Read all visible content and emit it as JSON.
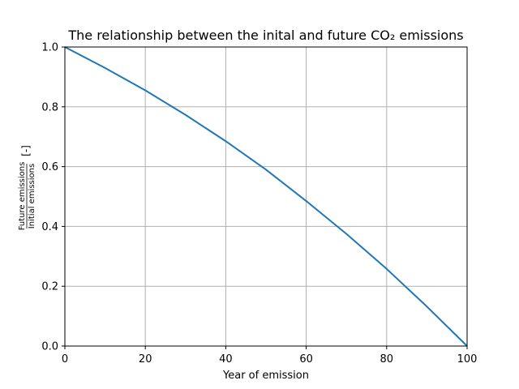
{
  "chart_data": {
    "type": "line",
    "title": "The relationship between the inital and future CO₂ emissions",
    "xlabel": "Year of emission",
    "ylabel": {
      "numerator": "Future emissions",
      "denominator": "Initial emissions",
      "unit": "[-]"
    },
    "xlim": [
      0,
      100
    ],
    "ylim": [
      0.0,
      1.0
    ],
    "xticks": [
      0,
      20,
      40,
      60,
      80,
      100
    ],
    "xtick_labels": [
      "0",
      "20",
      "40",
      "60",
      "80",
      "100"
    ],
    "yticks": [
      0.0,
      0.2,
      0.4,
      0.6,
      0.8,
      1.0
    ],
    "ytick_labels": [
      "0.0",
      "0.2",
      "0.4",
      "0.6",
      "0.8",
      "1.0"
    ],
    "grid": true,
    "legend": false,
    "series": [
      {
        "color": "#1f77b4",
        "x": [
          0,
          10,
          20,
          30,
          40,
          50,
          60,
          70,
          80,
          90,
          100
        ],
        "y": [
          1.0,
          0.93,
          0.855,
          0.773,
          0.685,
          0.59,
          0.485,
          0.375,
          0.258,
          0.132,
          0.0
        ]
      }
    ]
  }
}
